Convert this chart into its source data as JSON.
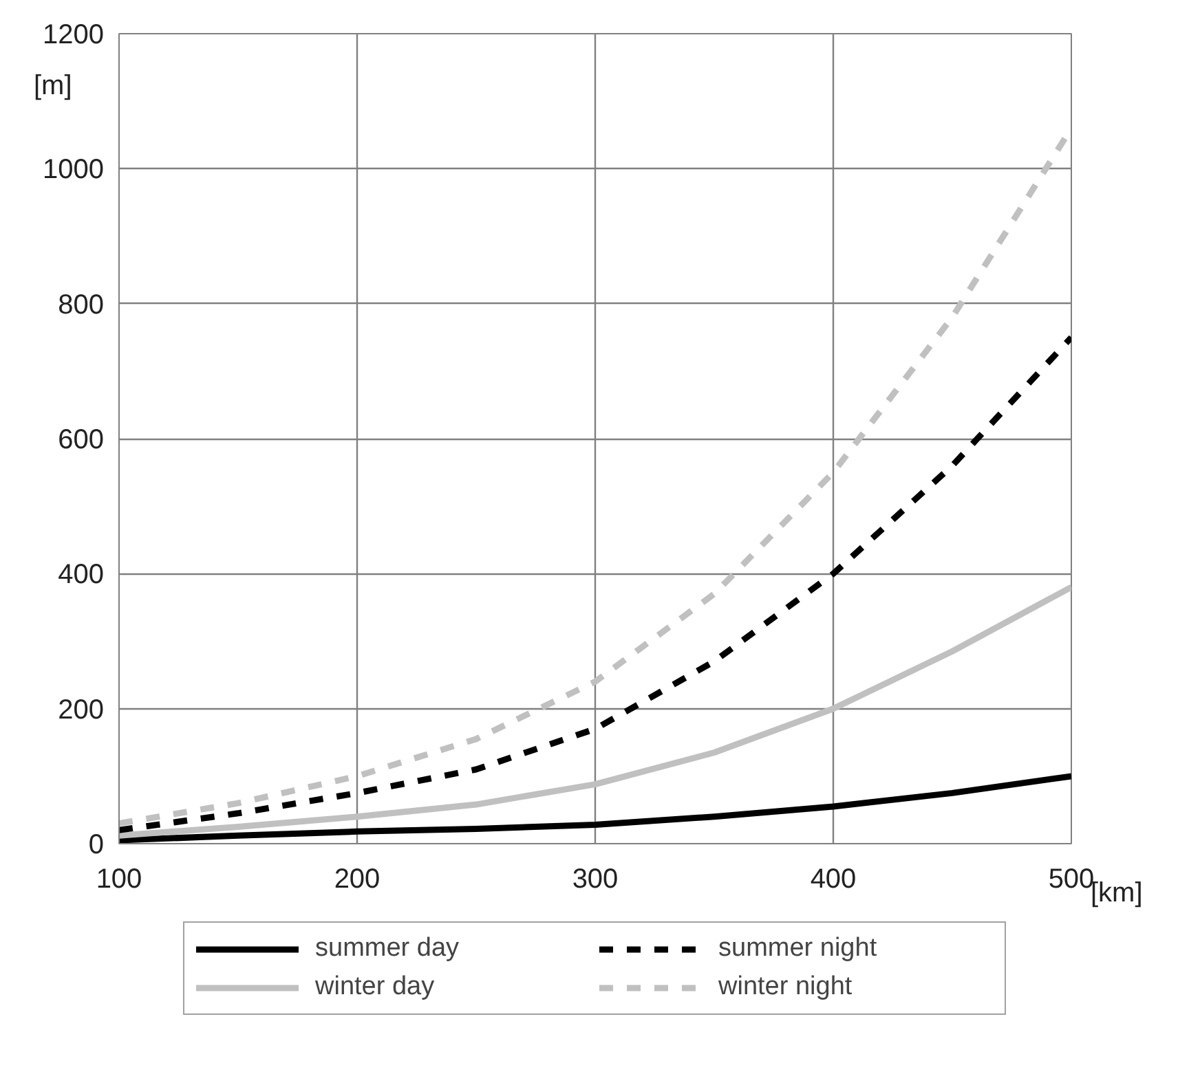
{
  "chart_data": {
    "type": "line",
    "xlabel": "[km]",
    "ylabel": "[m]",
    "x": [
      100,
      150,
      200,
      250,
      300,
      350,
      400,
      450,
      500
    ],
    "xlim": [
      100,
      500
    ],
    "ylim": [
      0,
      1200
    ],
    "xticks": [
      100,
      200,
      300,
      400,
      500
    ],
    "yticks": [
      0,
      200,
      400,
      600,
      800,
      1000,
      1200
    ],
    "grid": true,
    "legend": "bottom",
    "marker": "none",
    "series": [
      {
        "name": "summer day",
        "color": "#000000",
        "line_style": "solid",
        "values": [
          5,
          12,
          18,
          22,
          28,
          40,
          55,
          75,
          100
        ]
      },
      {
        "name": "winter day",
        "color": "#c0c0c0",
        "line_style": "solid",
        "values": [
          12,
          25,
          40,
          58,
          88,
          135,
          200,
          285,
          380
        ]
      },
      {
        "name": "summer night",
        "color": "#000000",
        "line_style": "dashed",
        "values": [
          20,
          45,
          75,
          110,
          170,
          270,
          400,
          560,
          750
        ]
      },
      {
        "name": "winter night",
        "color": "#c0c0c0",
        "line_style": "dashed",
        "values": [
          30,
          60,
          100,
          155,
          240,
          370,
          550,
          780,
          1060
        ]
      }
    ]
  }
}
